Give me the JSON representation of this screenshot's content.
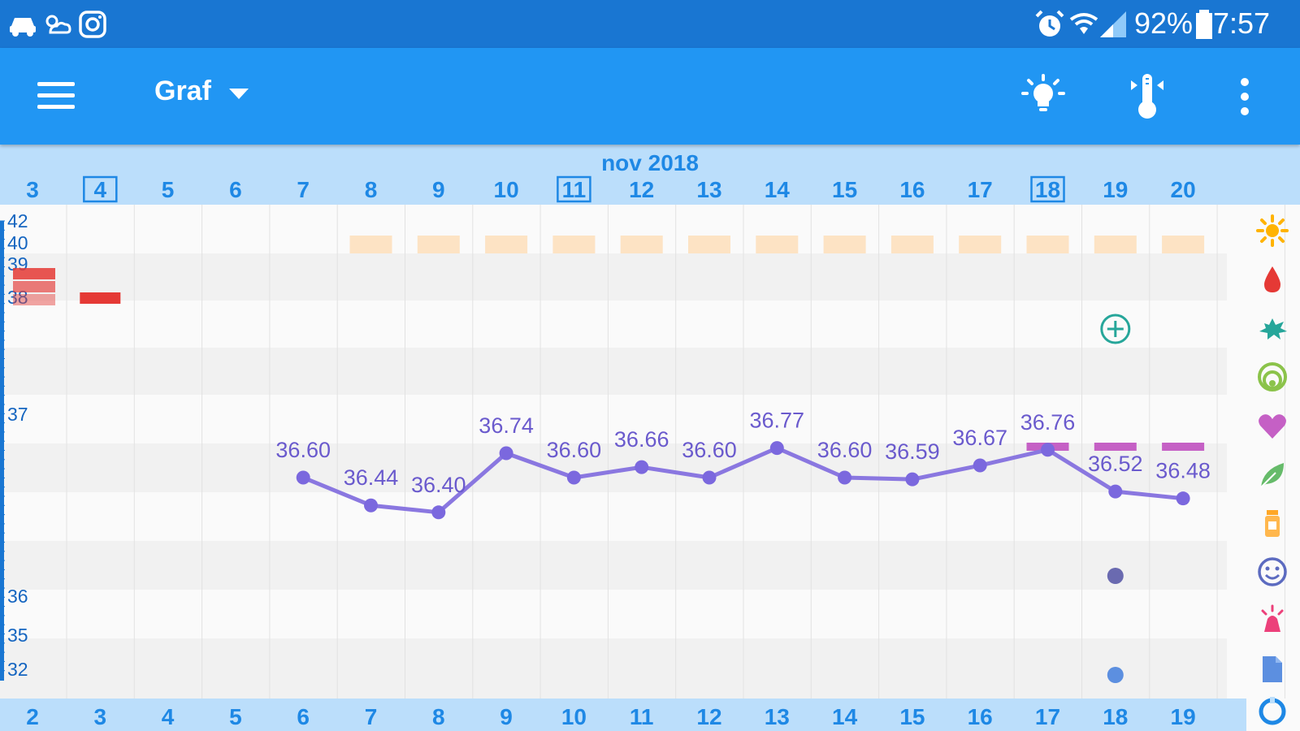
{
  "status_bar": {
    "battery_label": "92%",
    "time": "7:57",
    "icons": [
      "car-icon",
      "weather-icon",
      "instagram-icon",
      "alarm-icon",
      "wifi-icon",
      "signal-icon",
      "battery-icon"
    ]
  },
  "app_bar": {
    "title": "Graf",
    "icons": [
      "menu-icon",
      "dropdown-arrow-icon",
      "lightbulb-icon",
      "thermometer-icon",
      "more-vert-icon"
    ]
  },
  "chart_data": {
    "type": "line",
    "month_label": "nov 2018",
    "top_day_labels": [
      "3",
      "4",
      "5",
      "6",
      "7",
      "8",
      "9",
      "10",
      "11",
      "12",
      "13",
      "14",
      "15",
      "16",
      "17",
      "18",
      "19",
      "20"
    ],
    "boxed_top_days": [
      "4",
      "11",
      "18"
    ],
    "bottom_cycle_labels": [
      "2",
      "3",
      "4",
      "5",
      "6",
      "7",
      "8",
      "9",
      "10",
      "11",
      "12",
      "13",
      "14",
      "15",
      "16",
      "17",
      "18",
      "19"
    ],
    "y_tick_labels": [
      "42",
      "40",
      "39",
      "38",
      "37",
      "36",
      "35",
      "32"
    ],
    "series": [
      {
        "values": [
          null,
          null,
          null,
          null,
          36.6,
          36.44,
          36.4,
          36.74,
          36.6,
          36.66,
          36.6,
          36.77,
          36.6,
          36.59,
          36.67,
          36.76,
          36.52,
          36.48
        ],
        "labels": [
          "",
          "",
          "",
          "",
          "36.60",
          "36.44",
          "36.40",
          "36.74",
          "36.60",
          "36.66",
          "36.60",
          "36.77",
          "36.60",
          "36.59",
          "36.67",
          "36.76",
          "36.52",
          "36.48"
        ],
        "color": "#7b68de"
      }
    ],
    "row_markers": {
      "sun_row": {
        "columns": [
          5,
          6,
          7,
          8,
          9,
          10,
          11,
          12,
          13,
          14,
          15,
          16,
          17
        ],
        "color": "#fde3c4"
      },
      "bleeding_row": {
        "columns": [
          1
        ],
        "color": "#e53935"
      },
      "add_marker": {
        "column": 16,
        "icon": "add-circle-icon",
        "color": "#26a69a"
      },
      "heart_row": {
        "columns": [
          15,
          16,
          17
        ],
        "color": "#c560c5"
      },
      "mood_row": {
        "columns": [
          16
        ],
        "color": "#6a6ab0"
      },
      "notes_row": {
        "columns": [
          16
        ],
        "color": "#5c8fe0"
      }
    },
    "grid": true,
    "side_icons": [
      "sun-icon",
      "drop-icon",
      "splash-icon",
      "rainbow-icon",
      "heart-icon",
      "leaf-icon",
      "pill-bottle-icon",
      "smiley-icon",
      "alarm-bell-icon",
      "document-icon",
      "cycle-icon"
    ]
  },
  "colors": {
    "status_bar": "#1976d2",
    "app_bar": "#2196f3",
    "header_band": "#bbdefb",
    "accent_text": "#1e88e5",
    "line": "#7b68de",
    "label": "#6a5acd"
  }
}
